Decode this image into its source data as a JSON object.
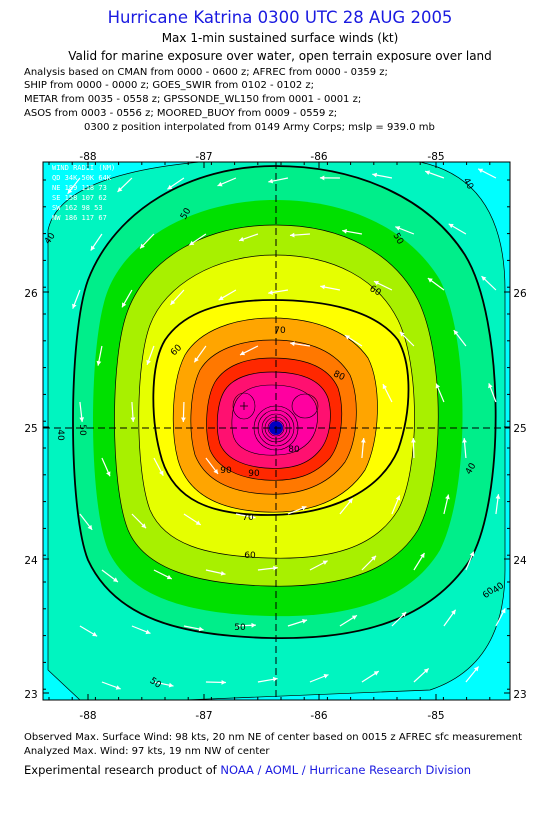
{
  "header": {
    "title": "Hurricane Katrina 0300 UTC 28 AUG 2005",
    "subtitle1": "Max 1-min sustained surface winds (kt)",
    "subtitle2": "Valid for marine exposure over water, open terrain exposure over land",
    "analysis_lines": [
      "Analysis based on  CMAN from 0000 - 0600 z;  AFREC from 0000 - 0359 z;",
      "SHIP from 0000 - 0000 z;  GOES_SWIR from 0102 - 0102 z;",
      "METAR from 0035 - 0558 z;  GPSSONDE_WL150 from 0001 - 0001 z;",
      "ASOS from 0003 - 0556 z;  MOORED_BUOY from 0009 - 0559 z;"
    ],
    "position_note": "0300 z position interpolated from 0149 Army Corps; mslp = 939.0 mb"
  },
  "chart_data": {
    "type": "contour",
    "x_ticks": [
      "-88",
      "-87",
      "-86",
      "-85"
    ],
    "y_ticks": [
      "26",
      "25",
      "24",
      "23"
    ],
    "xlim": [
      -88.4,
      -84.4
    ],
    "ylim": [
      22.95,
      26.95
    ],
    "center": {
      "lon": -86.3,
      "lat": 24.98
    },
    "contour_levels": [
      40,
      50,
      60,
      70,
      80,
      90
    ],
    "contour_labels": [
      "50",
      "50",
      "40",
      "40",
      "40",
      "40",
      "50",
      "50",
      "50",
      "60",
      "60",
      "60",
      "60",
      "70",
      "70",
      "80",
      "80",
      "90",
      "90",
      "40"
    ],
    "wind_radii_table": {
      "header": "WIND RADII (NM)",
      "columns": "QD  34K  50K  64K",
      "rows": [
        "NE 189 118  73",
        "SE 158 107  62",
        "SW 162  98  53",
        "NW 186 117  67"
      ]
    },
    "colors": {
      "cyan": "#00ffff",
      "aqua_green": "#00f5c0",
      "light_green": "#00ee8a",
      "green": "#00e000",
      "yellow_green": "#a8f000",
      "lime_yellow": "#e6ff00",
      "yellow": "#ffff00",
      "orange": "#ffa500",
      "dark_orange": "#ff7800",
      "red": "#ff2800",
      "magenta_red": "#ff1070",
      "magenta": "#ff00a0",
      "blue": "#0000c0"
    }
  },
  "footer": {
    "observed": "Observed Max. Surface Wind: 98 kts, 20 nm NE of center based on 0015 z AFREC sfc measurement",
    "analyzed": "Analyzed Max. Wind: 97 kts, 19 nm NW of center",
    "credit_prefix": "Experimental research product of",
    "credit_link": "NOAA / AOML / Hurricane Research Division"
  }
}
